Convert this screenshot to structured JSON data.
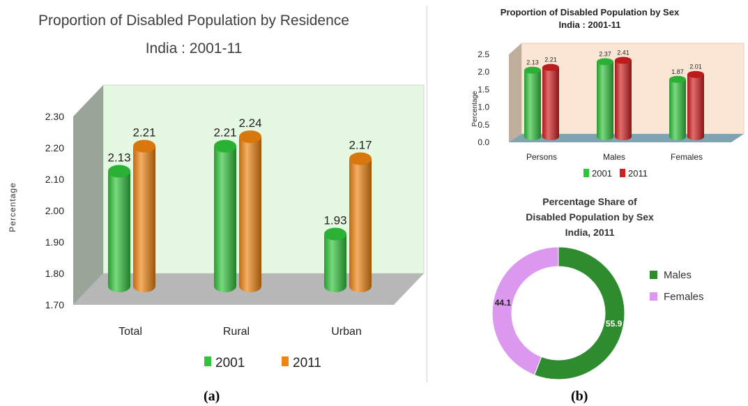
{
  "captions": {
    "a": "(a)",
    "b": "(b)"
  },
  "colors": {
    "green": "#2fc43a",
    "orange": "#f08410",
    "red": "#d11f1f",
    "donut_males": "#2e8b2e",
    "donut_females": "#dc98ef",
    "wall_a": "#e5f8e1",
    "wall_b": "#fbe6d6"
  },
  "chart_data": [
    {
      "type": "bar",
      "title": "Proportion of Disabled Population by Residence",
      "subtitle": "India : 2001-11",
      "ylabel": "Percentage",
      "xlabel": "",
      "categories": [
        "Total",
        "Rural",
        "Urban"
      ],
      "series": [
        {
          "name": "2001",
          "values": [
            2.13,
            2.21,
            1.93
          ]
        },
        {
          "name": "2011",
          "values": [
            2.21,
            2.24,
            2.17
          ]
        }
      ],
      "ylim": [
        1.7,
        2.3
      ],
      "yticks": [
        "2.30",
        "2.20",
        "2.10",
        "2.00",
        "1.90",
        "1.80",
        "1.70"
      ],
      "legend": "bottom",
      "grid": false
    },
    {
      "type": "bar",
      "title": "Proportion of Disabled Population by Sex",
      "subtitle": "India : 2001-11",
      "ylabel": "Percentage",
      "xlabel": "",
      "categories": [
        "Persons",
        "Males",
        "Females"
      ],
      "series": [
        {
          "name": "2001",
          "values": [
            2.13,
            2.37,
            1.87
          ]
        },
        {
          "name": "2011",
          "values": [
            2.21,
            2.41,
            2.01
          ]
        }
      ],
      "ylim": [
        0.0,
        2.5
      ],
      "yticks": [
        "2.5",
        "2.0",
        "1.5",
        "1.0",
        "0.5",
        "0.0"
      ],
      "legend": "bottom",
      "grid": false
    },
    {
      "type": "pie",
      "donut": true,
      "title_lines": [
        "Percentage Share of",
        "Disabled Population by Sex",
        "India, 2011"
      ],
      "labels": [
        "Males",
        "Females"
      ],
      "values": [
        55.9,
        44.1
      ],
      "value_labels": [
        "55.9",
        "44.1"
      ],
      "legend": "right"
    }
  ]
}
